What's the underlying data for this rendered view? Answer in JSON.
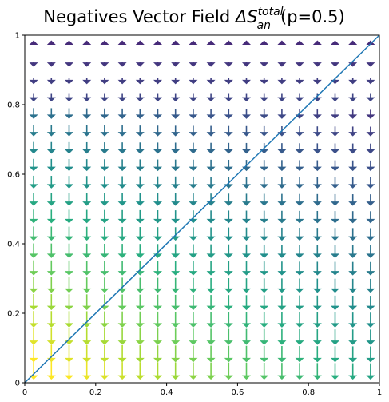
{
  "chart_data": {
    "type": "quiver",
    "title_main": "Negatives Vector Field ",
    "title_math": "ΔS",
    "title_sup": "total",
    "title_sub": "an",
    "title_tail": "(p=0.5)",
    "xlim": [
      0,
      1
    ],
    "ylim": [
      0,
      1
    ],
    "x_ticks": [
      0,
      0.2,
      0.4,
      0.6,
      0.8,
      1
    ],
    "x_tick_labels": [
      "0",
      "0.2",
      "0.4",
      "0.6",
      "0.8",
      "1"
    ],
    "y_ticks": [
      0,
      0.2,
      0.4,
      0.6,
      0.8,
      1
    ],
    "y_tick_labels": [
      "0",
      "0.2",
      "0.4",
      "0.6",
      "0.8",
      "1"
    ],
    "grid": false,
    "colormap": "viridis",
    "arrow_direction": "down",
    "reference_line": {
      "type": "diagonal",
      "from": [
        0,
        0
      ],
      "to": [
        1,
        1
      ],
      "color": "#1f77b4"
    },
    "grid_x": [
      0.025,
      0.075,
      0.125,
      0.175,
      0.225,
      0.275,
      0.325,
      0.375,
      0.425,
      0.475,
      0.525,
      0.575,
      0.625,
      0.675,
      0.725,
      0.775,
      0.825,
      0.875,
      0.925,
      0.975
    ],
    "grid_y": [
      0.025,
      0.075,
      0.125,
      0.175,
      0.225,
      0.275,
      0.325,
      0.375,
      0.425,
      0.475,
      0.525,
      0.575,
      0.625,
      0.675,
      0.725,
      0.775,
      0.825,
      0.875,
      0.925,
      0.975
    ],
    "arrow_up_rows_y": [
      0.975
    ]
  }
}
